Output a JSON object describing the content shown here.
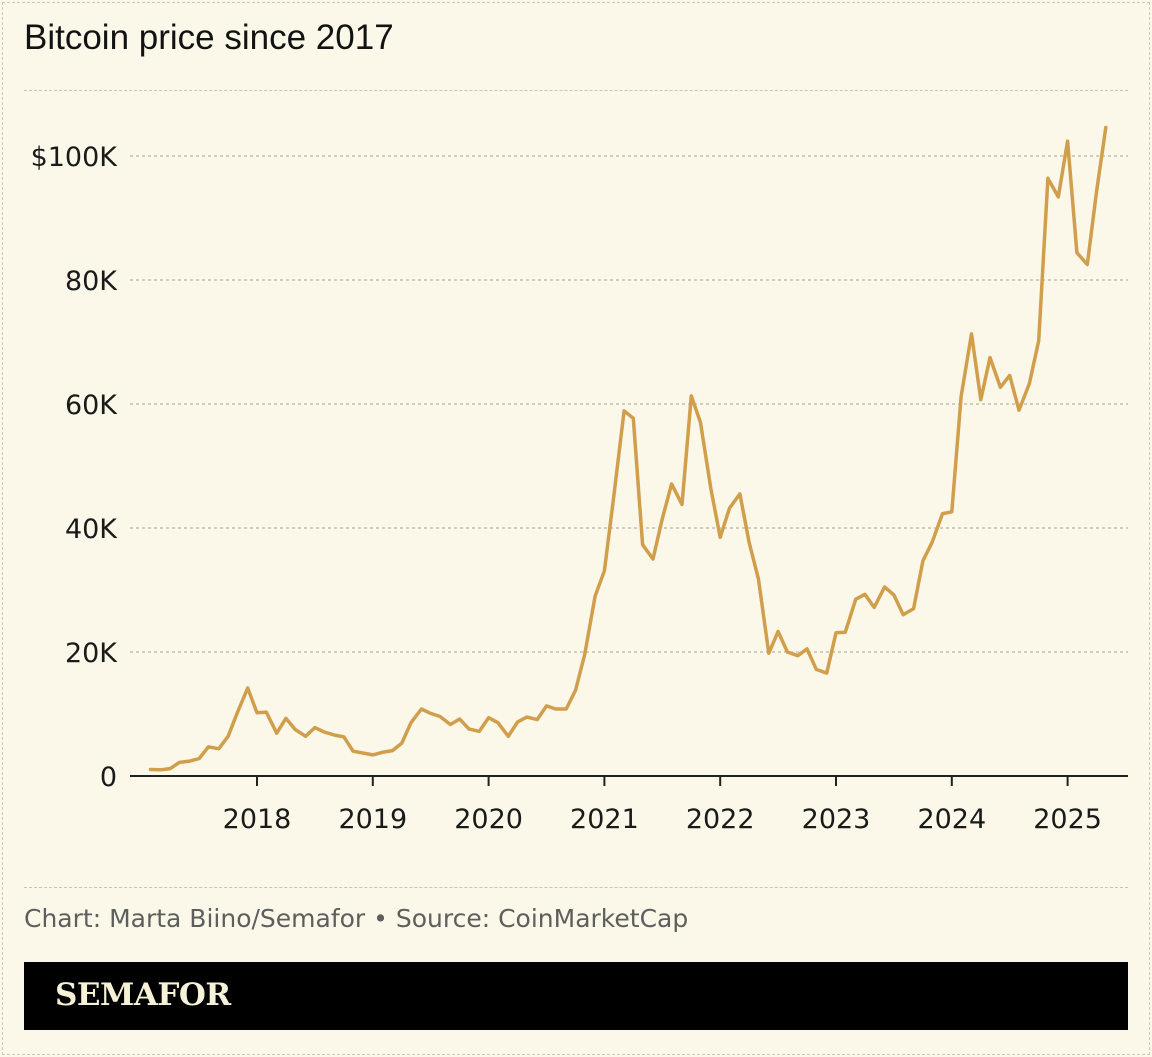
{
  "title": "Bitcoin price since 2017",
  "credit": "Chart: Marta Biino/Semafor • Source: CoinMarketCap",
  "brand": "SEMAFOR",
  "colors": {
    "background": "#fbf8e9",
    "line": "#d19e4c",
    "axis": "#222222",
    "grid": "#b9b5a2",
    "footer_bar": "#000000"
  },
  "chart_data": {
    "type": "line",
    "title": "Bitcoin price since 2017",
    "xlabel": "",
    "ylabel": "",
    "grid": true,
    "xlim": [
      2017.0,
      2025.5
    ],
    "ylim": [
      0,
      110000
    ],
    "yticks": [
      {
        "value": 0,
        "label": "0"
      },
      {
        "value": 20000,
        "label": "20K"
      },
      {
        "value": 40000,
        "label": "40K"
      },
      {
        "value": 60000,
        "label": "60K"
      },
      {
        "value": 80000,
        "label": "80K"
      },
      {
        "value": 100000,
        "label": "$100K"
      }
    ],
    "xticks": [
      {
        "value": 2018,
        "label": "2018"
      },
      {
        "value": 2019,
        "label": "2019"
      },
      {
        "value": 2020,
        "label": "2020"
      },
      {
        "value": 2021,
        "label": "2021"
      },
      {
        "value": 2022,
        "label": "2022"
      },
      {
        "value": 2023,
        "label": "2023"
      },
      {
        "value": 2024,
        "label": "2024"
      },
      {
        "value": 2025,
        "label": "2025"
      }
    ],
    "series": [
      {
        "points": [
          [
            2017.08,
            1050
          ],
          [
            2017.17,
            1000
          ],
          [
            2017.25,
            1200
          ],
          [
            2017.33,
            2200
          ],
          [
            2017.42,
            2400
          ],
          [
            2017.5,
            2800
          ],
          [
            2017.58,
            4700
          ],
          [
            2017.67,
            4400
          ],
          [
            2017.75,
            6400
          ],
          [
            2017.83,
            10200
          ],
          [
            2017.92,
            14200
          ],
          [
            2018.0,
            10200
          ],
          [
            2018.08,
            10300
          ],
          [
            2018.17,
            6900
          ],
          [
            2018.25,
            9300
          ],
          [
            2018.33,
            7500
          ],
          [
            2018.42,
            6400
          ],
          [
            2018.5,
            7800
          ],
          [
            2018.58,
            7100
          ],
          [
            2018.67,
            6600
          ],
          [
            2018.75,
            6300
          ],
          [
            2018.83,
            4000
          ],
          [
            2018.92,
            3700
          ],
          [
            2019.0,
            3400
          ],
          [
            2019.08,
            3800
          ],
          [
            2019.17,
            4100
          ],
          [
            2019.25,
            5300
          ],
          [
            2019.33,
            8600
          ],
          [
            2019.42,
            10800
          ],
          [
            2019.5,
            10100
          ],
          [
            2019.58,
            9600
          ],
          [
            2019.67,
            8300
          ],
          [
            2019.75,
            9200
          ],
          [
            2019.83,
            7600
          ],
          [
            2019.92,
            7200
          ],
          [
            2020.0,
            9400
          ],
          [
            2020.08,
            8600
          ],
          [
            2020.17,
            6400
          ],
          [
            2020.25,
            8700
          ],
          [
            2020.33,
            9500
          ],
          [
            2020.42,
            9100
          ],
          [
            2020.5,
            11300
          ],
          [
            2020.58,
            10800
          ],
          [
            2020.67,
            10800
          ],
          [
            2020.75,
            13800
          ],
          [
            2020.83,
            19600
          ],
          [
            2020.92,
            29000
          ],
          [
            2021.0,
            33100
          ],
          [
            2021.08,
            45000
          ],
          [
            2021.17,
            58900
          ],
          [
            2021.25,
            57700
          ],
          [
            2021.33,
            37300
          ],
          [
            2021.42,
            35000
          ],
          [
            2021.5,
            41500
          ],
          [
            2021.58,
            47100
          ],
          [
            2021.67,
            43800
          ],
          [
            2021.75,
            61300
          ],
          [
            2021.83,
            57000
          ],
          [
            2021.92,
            46300
          ],
          [
            2022.0,
            38500
          ],
          [
            2022.08,
            43200
          ],
          [
            2022.17,
            45500
          ],
          [
            2022.25,
            37700
          ],
          [
            2022.33,
            31800
          ],
          [
            2022.42,
            19800
          ],
          [
            2022.5,
            23300
          ],
          [
            2022.58,
            20000
          ],
          [
            2022.67,
            19400
          ],
          [
            2022.75,
            20500
          ],
          [
            2022.83,
            17200
          ],
          [
            2022.92,
            16600
          ],
          [
            2023.0,
            23100
          ],
          [
            2023.08,
            23200
          ],
          [
            2023.17,
            28500
          ],
          [
            2023.25,
            29300
          ],
          [
            2023.33,
            27200
          ],
          [
            2023.42,
            30500
          ],
          [
            2023.5,
            29200
          ],
          [
            2023.58,
            26000
          ],
          [
            2023.67,
            27000
          ],
          [
            2023.75,
            34700
          ],
          [
            2023.83,
            37700
          ],
          [
            2023.92,
            42300
          ],
          [
            2024.0,
            42600
          ],
          [
            2024.08,
            61200
          ],
          [
            2024.17,
            71300
          ],
          [
            2024.25,
            60700
          ],
          [
            2024.33,
            67500
          ],
          [
            2024.42,
            62700
          ],
          [
            2024.5,
            64600
          ],
          [
            2024.58,
            59000
          ],
          [
            2024.67,
            63300
          ],
          [
            2024.75,
            70200
          ],
          [
            2024.83,
            96400
          ],
          [
            2024.92,
            93400
          ],
          [
            2025.0,
            102400
          ],
          [
            2025.08,
            84400
          ],
          [
            2025.17,
            82500
          ],
          [
            2025.25,
            94200
          ],
          [
            2025.33,
            104600
          ]
        ]
      }
    ]
  }
}
